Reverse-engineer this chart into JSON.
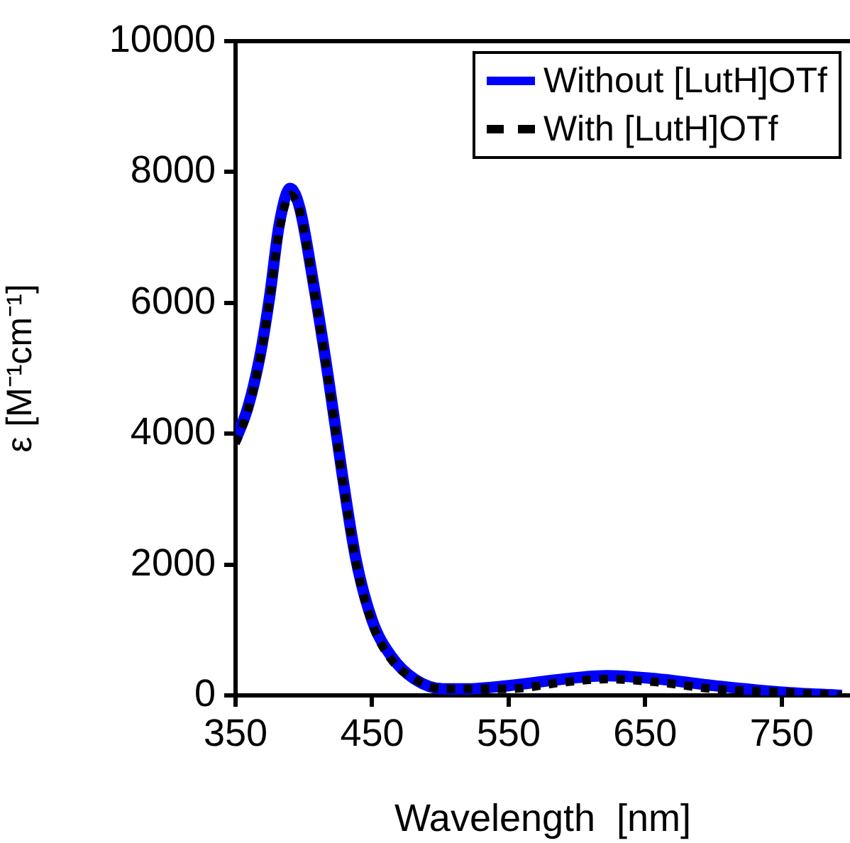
{
  "chart_data": {
    "type": "line",
    "xlabel": "Wavelength  [nm]",
    "ylabel": "ε [M⁻¹cm⁻¹]",
    "xlim": [
      350,
      800
    ],
    "xticks": [
      350,
      450,
      550,
      650,
      750
    ],
    "ylim": [
      0,
      10000
    ],
    "yticks": [
      0,
      2000,
      4000,
      6000,
      8000,
      10000
    ],
    "grid": false,
    "legend": "top right",
    "marker": "none",
    "series": [
      {
        "name": "Without [LutH]OTf",
        "color": "#0000ff",
        "line_style": "solid",
        "x": [
          350,
          359,
          368,
          375,
          382,
          390,
          397,
          407,
          418,
          428,
          438,
          450,
          464,
          481,
          502,
          518,
          550,
          590,
          622,
          660,
          700,
          750,
          794
        ],
        "values": [
          3900,
          4400,
          5200,
          6100,
          7200,
          7750,
          7450,
          6300,
          4850,
          3400,
          2100,
          1150,
          600,
          250,
          100,
          100,
          150,
          250,
          300,
          250,
          150,
          50,
          0
        ]
      },
      {
        "name": "With [LutH]OTf",
        "color": "#000000",
        "line_style": "dotted",
        "x": [
          350,
          359,
          368,
          375,
          382,
          390,
          397,
          407,
          418,
          428,
          438,
          450,
          464,
          481,
          502,
          518,
          550,
          590,
          622,
          660,
          700,
          750,
          794
        ],
        "values": [
          3850,
          4350,
          5150,
          6050,
          7100,
          7650,
          7400,
          6250,
          4800,
          3350,
          2050,
          1100,
          550,
          250,
          100,
          100,
          100,
          200,
          250,
          200,
          100,
          50,
          0
        ]
      }
    ]
  }
}
